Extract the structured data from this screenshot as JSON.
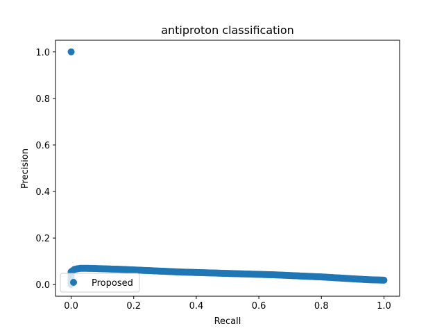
{
  "chart_data": {
    "type": "scatter",
    "title": "antiproton classification",
    "xlabel": "Recall",
    "ylabel": "Precision",
    "xlim": [
      -0.05,
      1.05
    ],
    "ylim": [
      -0.05,
      1.05
    ],
    "xticks": [
      "0.0",
      "0.2",
      "0.4",
      "0.6",
      "0.8",
      "1.0"
    ],
    "yticks": [
      "0.0",
      "0.2",
      "0.4",
      "0.6",
      "0.8",
      "1.0"
    ],
    "grid": false,
    "legend_position": "lower left",
    "color": "#1f77b4",
    "series": [
      {
        "name": "Proposed",
        "points": [
          [
            0.0,
            1.0
          ],
          [
            0.0,
            0.0
          ],
          [
            0.0,
            0.025
          ],
          [
            0.0,
            0.045
          ],
          [
            0.0,
            0.055
          ],
          [
            0.005,
            0.06
          ],
          [
            0.01,
            0.065
          ],
          [
            0.02,
            0.068
          ],
          [
            0.03,
            0.07
          ],
          [
            0.05,
            0.07
          ],
          [
            0.08,
            0.069
          ],
          [
            0.1,
            0.068
          ],
          [
            0.15,
            0.066
          ],
          [
            0.2,
            0.063
          ],
          [
            0.25,
            0.06
          ],
          [
            0.3,
            0.057
          ],
          [
            0.35,
            0.054
          ],
          [
            0.4,
            0.052
          ],
          [
            0.45,
            0.05
          ],
          [
            0.5,
            0.048
          ],
          [
            0.55,
            0.046
          ],
          [
            0.6,
            0.044
          ],
          [
            0.65,
            0.042
          ],
          [
            0.7,
            0.039
          ],
          [
            0.75,
            0.036
          ],
          [
            0.8,
            0.033
          ],
          [
            0.85,
            0.029
          ],
          [
            0.9,
            0.025
          ],
          [
            0.95,
            0.021
          ],
          [
            1.0,
            0.019
          ]
        ]
      }
    ]
  }
}
